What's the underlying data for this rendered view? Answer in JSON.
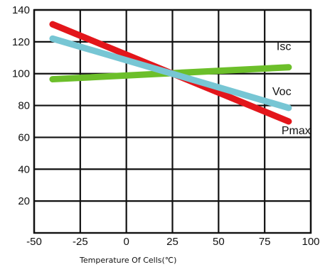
{
  "chart_data": {
    "type": "line",
    "title": "",
    "xlabel": "Temperature Of Cells(℃)",
    "ylabel": "",
    "xlim": [
      -50,
      100
    ],
    "ylim": [
      0,
      140
    ],
    "xticks": [
      -50,
      -25,
      0,
      25,
      50,
      75,
      100
    ],
    "xtick_labels": [
      "-50",
      "-25",
      "0",
      "25",
      "50",
      "75",
      "100"
    ],
    "yticks": [
      20,
      40,
      60,
      80,
      100,
      120,
      140
    ],
    "ytick_labels": [
      "20",
      "40",
      "60",
      "80",
      "100",
      "120",
      "140"
    ],
    "grid": true,
    "legend": "none",
    "series": [
      {
        "name": "Isc",
        "color": "#6cbf2a",
        "x": [
          -40,
          88
        ],
        "y": [
          96.5,
          104
        ]
      },
      {
        "name": "Voc",
        "color": "#77c6d4",
        "x": [
          -40,
          88
        ],
        "y": [
          122,
          78.5
        ]
      },
      {
        "name": "Pmax",
        "color": "#e3161b",
        "x": [
          -40,
          88
        ],
        "y": [
          131,
          70
        ]
      }
    ],
    "draw_order": [
      "Isc",
      "Pmax",
      "Voc"
    ]
  }
}
